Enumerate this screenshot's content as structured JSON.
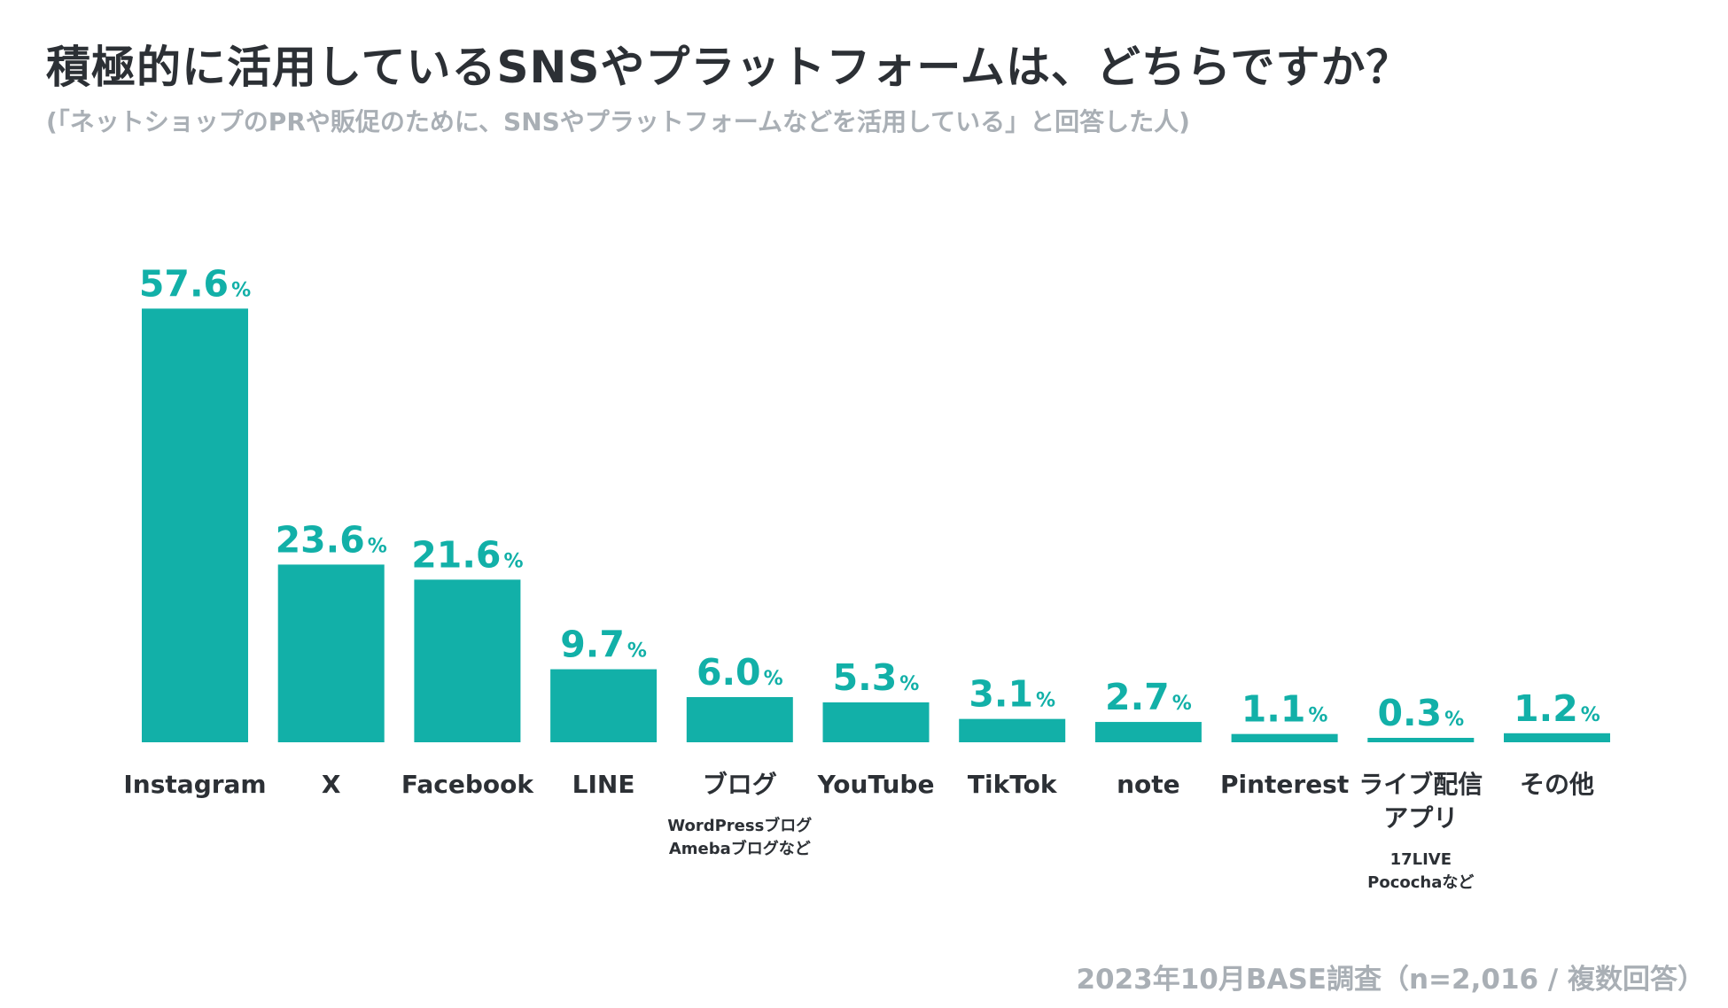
{
  "header": {
    "title": "積極的に活用しているSNSやプラットフォームは、どちらですか？",
    "subtitle": "(「ネットショップのPRや販促のために、SNSやプラットフォームなどを活用している」と回答した人)"
  },
  "footer": {
    "source": "2023年10月BASE調査（n=2,016 / 複数回答）"
  },
  "colors": {
    "bar": "#12b0a8",
    "title": "#2c3035",
    "muted": "#a9afb5"
  },
  "chart_data": {
    "type": "bar",
    "title": "積極的に活用しているSNSやプラットフォームは、どちらですか？",
    "xlabel": "",
    "ylabel": "",
    "unit": "%",
    "ylim": [
      0,
      60
    ],
    "grid": false,
    "legend": "none",
    "categories": [
      "Instagram",
      "X",
      "Facebook",
      "LINE",
      "ブログ",
      "YouTube",
      "TikTok",
      "note",
      "Pinterest",
      "ライブ配信アプリ",
      "その他"
    ],
    "category_lines": [
      [
        "Instagram"
      ],
      [
        "X"
      ],
      [
        "Facebook"
      ],
      [
        "LINE"
      ],
      [
        "ブログ"
      ],
      [
        "YouTube"
      ],
      [
        "TikTok"
      ],
      [
        "note"
      ],
      [
        "Pinterest"
      ],
      [
        "ライブ配信",
        "アプリ"
      ],
      [
        "その他"
      ]
    ],
    "notes": [
      [],
      [],
      [],
      [],
      [
        "WordPressブログ",
        "Amebaブログなど"
      ],
      [],
      [],
      [],
      [],
      [
        "17LIVE",
        "Pocochaなど"
      ],
      []
    ],
    "values": [
      57.6,
      23.6,
      21.6,
      9.7,
      6.0,
      5.3,
      3.1,
      2.7,
      1.1,
      0.3,
      1.2
    ],
    "value_labels": [
      "57.6",
      "23.6",
      "21.6",
      "9.7",
      "6.0",
      "5.3",
      "3.1",
      "2.7",
      "1.1",
      "0.3",
      "1.2"
    ]
  }
}
